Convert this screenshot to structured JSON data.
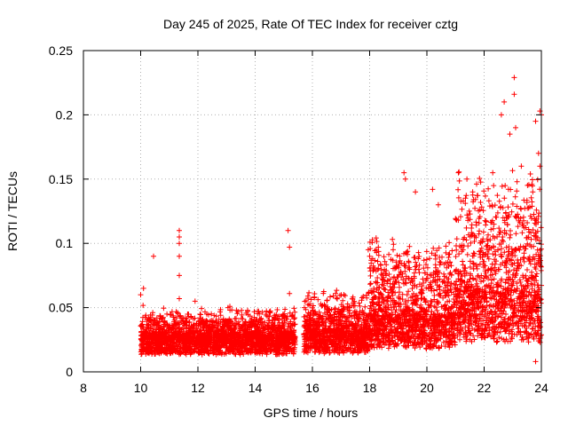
{
  "chart_data": {
    "type": "scatter",
    "title": "Day 245 of 2025, Rate Of TEC Index for receiver cztg",
    "xlabel": "GPS time / hours",
    "ylabel": "ROTI / TECUs",
    "xlim": [
      8,
      24
    ],
    "ylim": [
      0,
      0.25
    ],
    "xticks": [
      8,
      10,
      12,
      14,
      16,
      18,
      20,
      22,
      24
    ],
    "yticks": [
      0,
      0.05,
      0.1,
      0.15,
      0.2,
      0.25
    ],
    "xtick_labels": [
      "8",
      "10",
      "12",
      "14",
      "16",
      "18",
      "20",
      "22",
      "24"
    ],
    "ytick_labels": [
      "0",
      "0.05",
      "0.1",
      "0.15",
      "0.2",
      "0.25"
    ],
    "grid": true,
    "marker": "+",
    "marker_color": "#ff0000",
    "series": [
      {
        "name": "ROTI",
        "data_regions": [
          {
            "x_start": 10.0,
            "x_end": 15.4,
            "base": 0.018,
            "spread": 0.014
          },
          {
            "x_start": 15.7,
            "x_end": 18.0,
            "base": 0.02,
            "spread": 0.02
          },
          {
            "x_start": 18.0,
            "x_end": 21.0,
            "base": 0.03,
            "spread": 0.04
          },
          {
            "x_start": 21.0,
            "x_end": 24.0,
            "base": 0.045,
            "spread": 0.06
          }
        ],
        "outliers": [
          {
            "x": 10.0,
            "y": 0.06
          },
          {
            "x": 10.1,
            "y": 0.065
          },
          {
            "x": 10.45,
            "y": 0.09
          },
          {
            "x": 11.35,
            "y": 0.11
          },
          {
            "x": 11.35,
            "y": 0.105
          },
          {
            "x": 11.35,
            "y": 0.1
          },
          {
            "x": 11.35,
            "y": 0.09
          },
          {
            "x": 11.35,
            "y": 0.075
          },
          {
            "x": 11.35,
            "y": 0.057
          },
          {
            "x": 11.9,
            "y": 0.055
          },
          {
            "x": 13.05,
            "y": 0.05
          },
          {
            "x": 15.15,
            "y": 0.11
          },
          {
            "x": 15.2,
            "y": 0.097
          },
          {
            "x": 15.2,
            "y": 0.061
          },
          {
            "x": 17.95,
            "y": 0.095
          },
          {
            "x": 18.0,
            "y": 0.09
          },
          {
            "x": 19.2,
            "y": 0.155
          },
          {
            "x": 19.25,
            "y": 0.15
          },
          {
            "x": 19.6,
            "y": 0.14
          },
          {
            "x": 20.2,
            "y": 0.142
          },
          {
            "x": 20.4,
            "y": 0.13
          },
          {
            "x": 21.1,
            "y": 0.155
          },
          {
            "x": 21.4,
            "y": 0.15
          },
          {
            "x": 21.6,
            "y": 0.14
          },
          {
            "x": 22.3,
            "y": 0.155
          },
          {
            "x": 22.6,
            "y": 0.2
          },
          {
            "x": 22.7,
            "y": 0.21
          },
          {
            "x": 22.9,
            "y": 0.185
          },
          {
            "x": 23.05,
            "y": 0.229
          },
          {
            "x": 23.05,
            "y": 0.216
          },
          {
            "x": 23.1,
            "y": 0.19
          },
          {
            "x": 23.3,
            "y": 0.16
          },
          {
            "x": 23.8,
            "y": 0.195
          },
          {
            "x": 23.95,
            "y": 0.203
          },
          {
            "x": 24.0,
            "y": 0.2
          },
          {
            "x": 23.9,
            "y": 0.17
          },
          {
            "x": 23.95,
            "y": 0.16
          },
          {
            "x": 23.7,
            "y": 0.14
          },
          {
            "x": 23.8,
            "y": 0.008
          }
        ]
      }
    ]
  }
}
